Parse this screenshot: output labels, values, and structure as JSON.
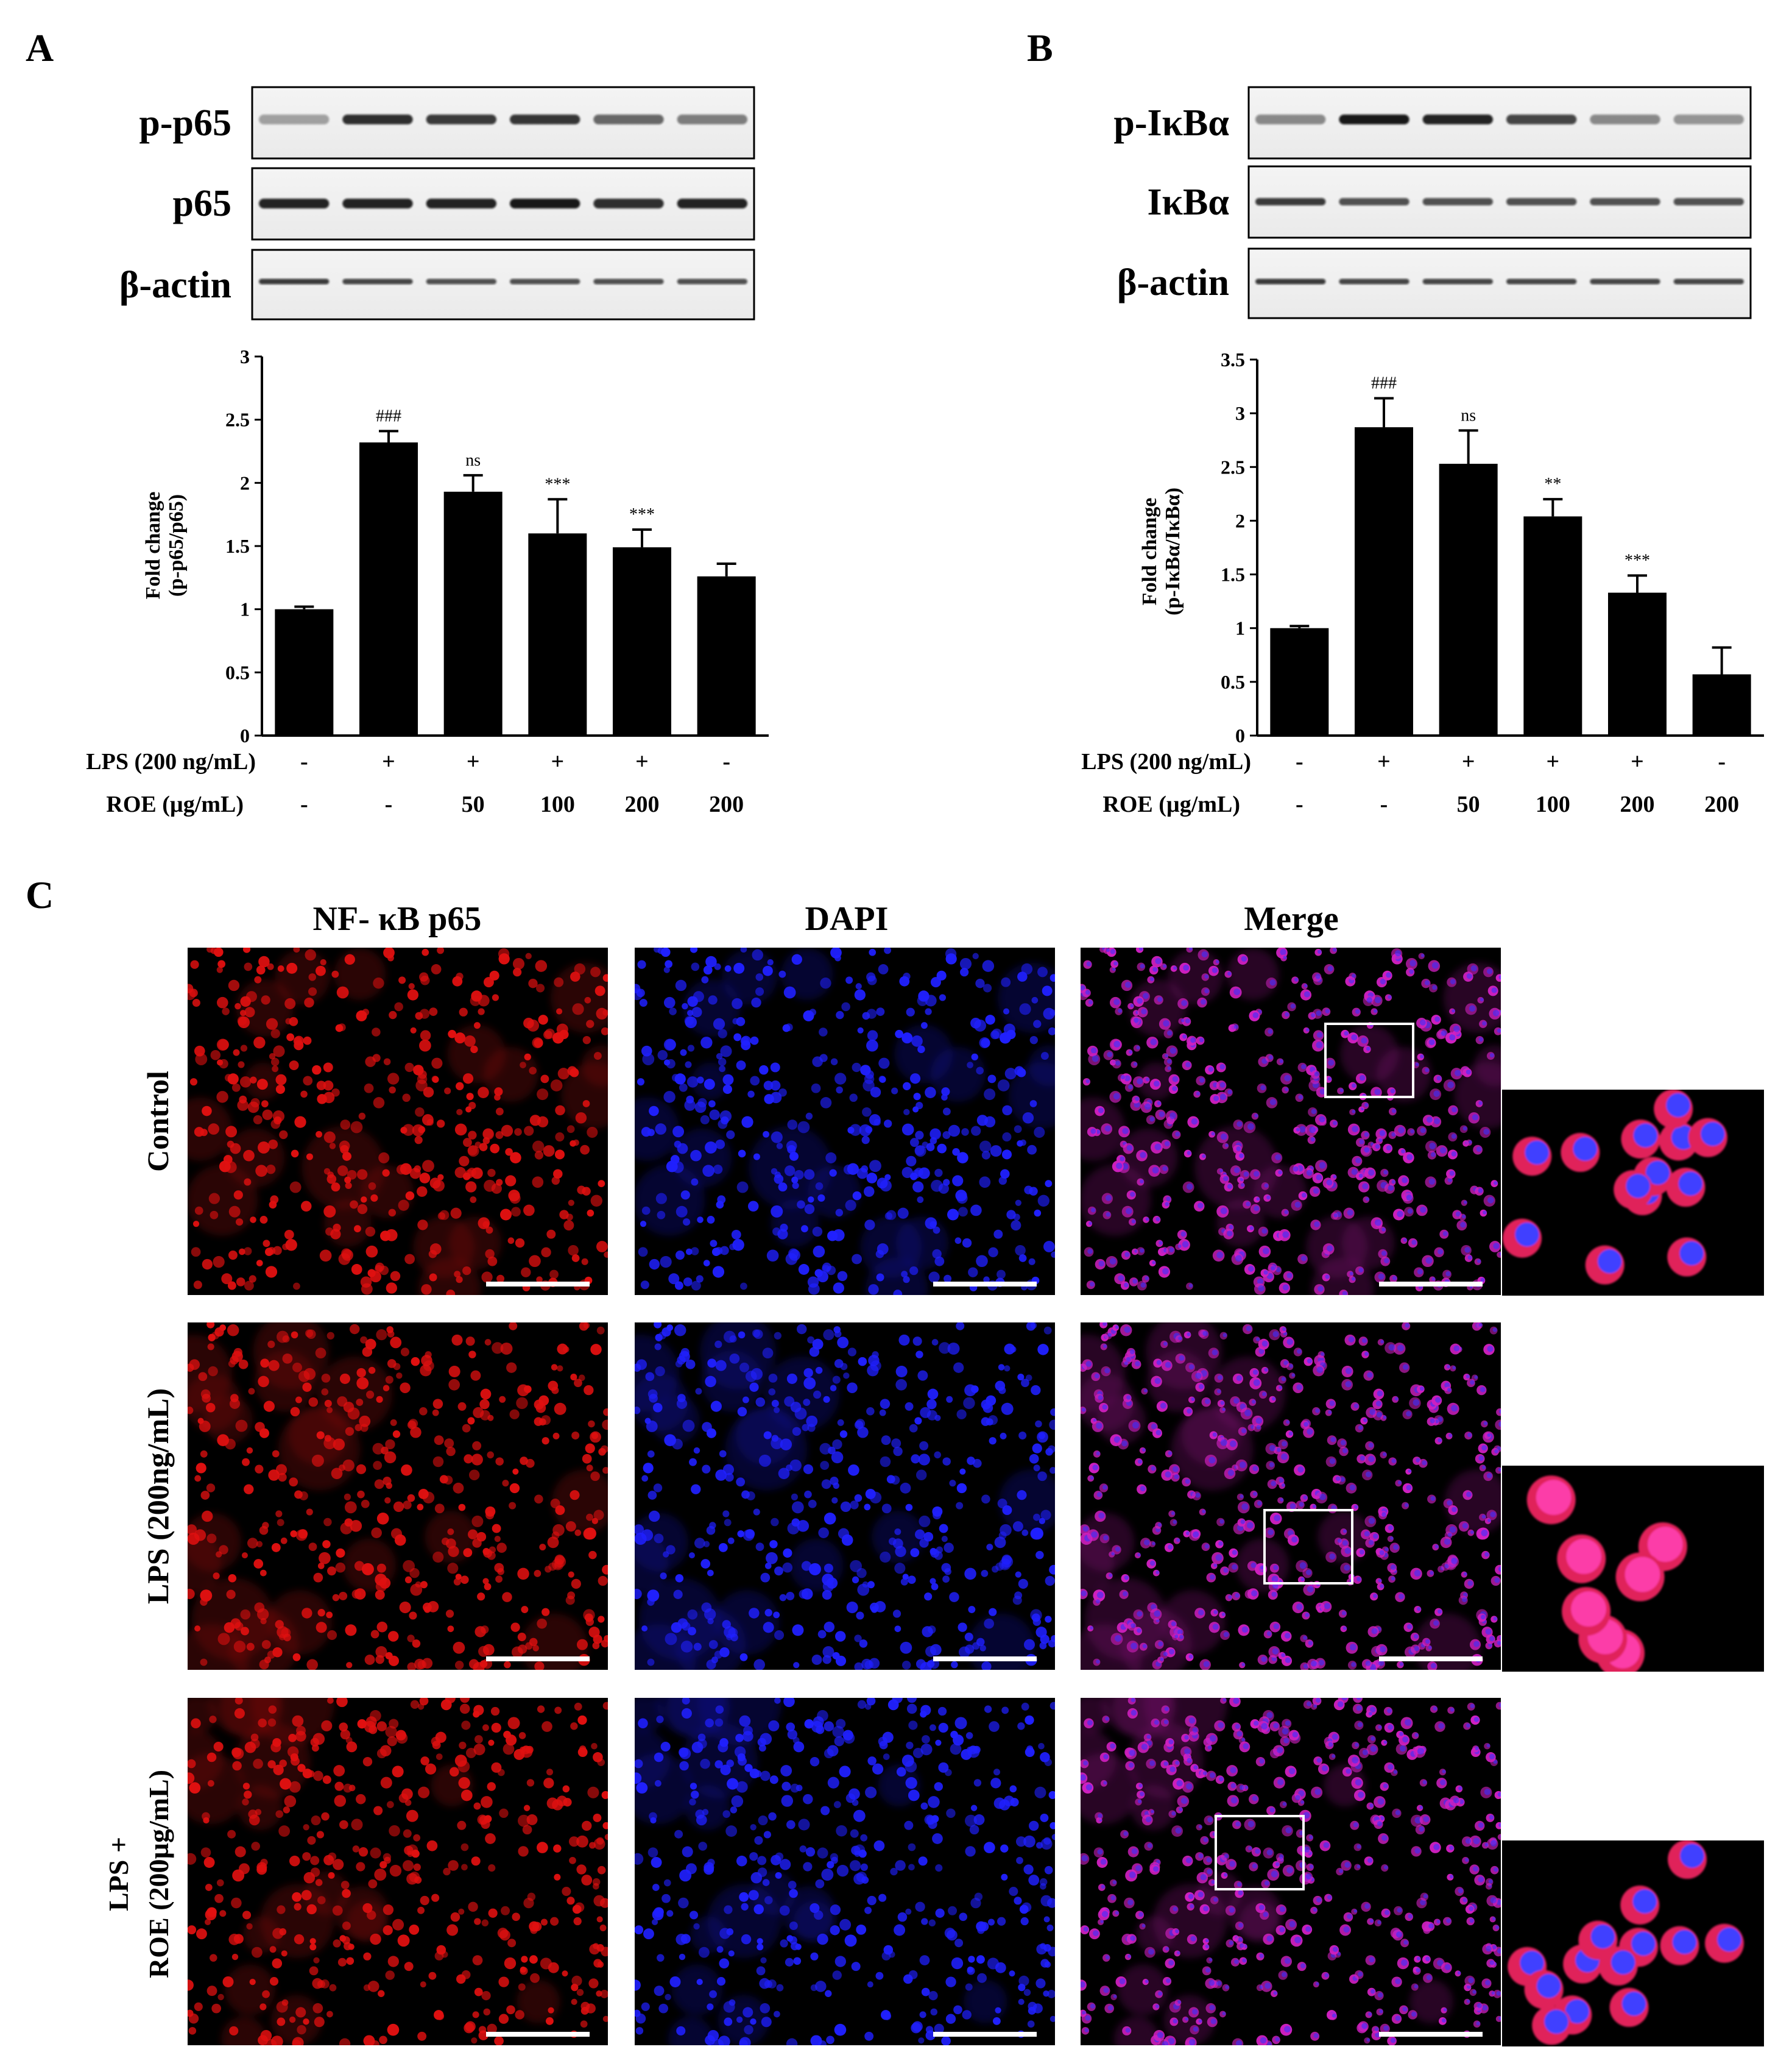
{
  "panel_a": {
    "label": "A",
    "blot_labels": [
      "p-p65",
      "p65",
      "β-actin"
    ],
    "chart_data": {
      "type": "bar",
      "title": "",
      "ylabel_lines": [
        "Fold change",
        "(p-p65/p65)"
      ],
      "ylim": [
        0,
        3
      ],
      "yticks": [
        "0",
        "0.5",
        "1",
        "1.5",
        "2",
        "2.5",
        "3"
      ],
      "values": [
        1.0,
        2.32,
        1.93,
        1.6,
        1.49,
        1.26
      ],
      "errors": [
        0.02,
        0.09,
        0.13,
        0.27,
        0.14,
        0.1
      ],
      "annotations": [
        "",
        "###",
        "ns",
        "***",
        "***",
        ""
      ]
    },
    "conditions": {
      "lps_label": "LPS (200 ng/mL)",
      "lps": [
        "-",
        "+",
        "+",
        "+",
        "+",
        "-"
      ],
      "roe_label": "ROE (µg/mL)",
      "roe": [
        "-",
        "-",
        "50",
        "100",
        "200",
        "200"
      ]
    }
  },
  "panel_b": {
    "label": "B",
    "blot_labels": [
      "p-IκBα",
      "IκBα",
      "β-actin"
    ],
    "chart_data": {
      "type": "bar",
      "title": "",
      "ylabel_lines": [
        "Fold change",
        "(p-IκBα/IκBα)"
      ],
      "ylim": [
        0,
        3.5
      ],
      "yticks": [
        "0",
        "0.5",
        "1",
        "1.5",
        "2",
        "2.5",
        "3",
        "3.5"
      ],
      "values": [
        1.0,
        2.87,
        2.53,
        2.04,
        1.33,
        0.57
      ],
      "errors": [
        0.02,
        0.27,
        0.31,
        0.16,
        0.16,
        0.25
      ],
      "annotations": [
        "",
        "###",
        "ns",
        "**",
        "***",
        ""
      ]
    },
    "conditions": {
      "lps_label": "LPS (200 ng/mL)",
      "lps": [
        "-",
        "+",
        "+",
        "+",
        "+",
        "-"
      ],
      "roe_label": "ROE (µg/mL)",
      "roe": [
        "-",
        "-",
        "50",
        "100",
        "200",
        "200"
      ]
    }
  },
  "panel_c": {
    "label": "C",
    "columns": [
      "NF- κB p65",
      "DAPI",
      "Merge"
    ],
    "rows": [
      {
        "label_lines": [
          "Control"
        ]
      },
      {
        "label_lines": [
          "LPS (200ng/mL)"
        ]
      },
      {
        "label_lines": [
          "LPS +",
          "ROE (200µg/mL)"
        ]
      }
    ]
  },
  "colors": {
    "bar": "#000000",
    "nf_kb_stain": "#e01010",
    "dapi_stain": "#2020ff",
    "merge_stain": "#d020c0",
    "micrograph_bg": "#000000"
  }
}
